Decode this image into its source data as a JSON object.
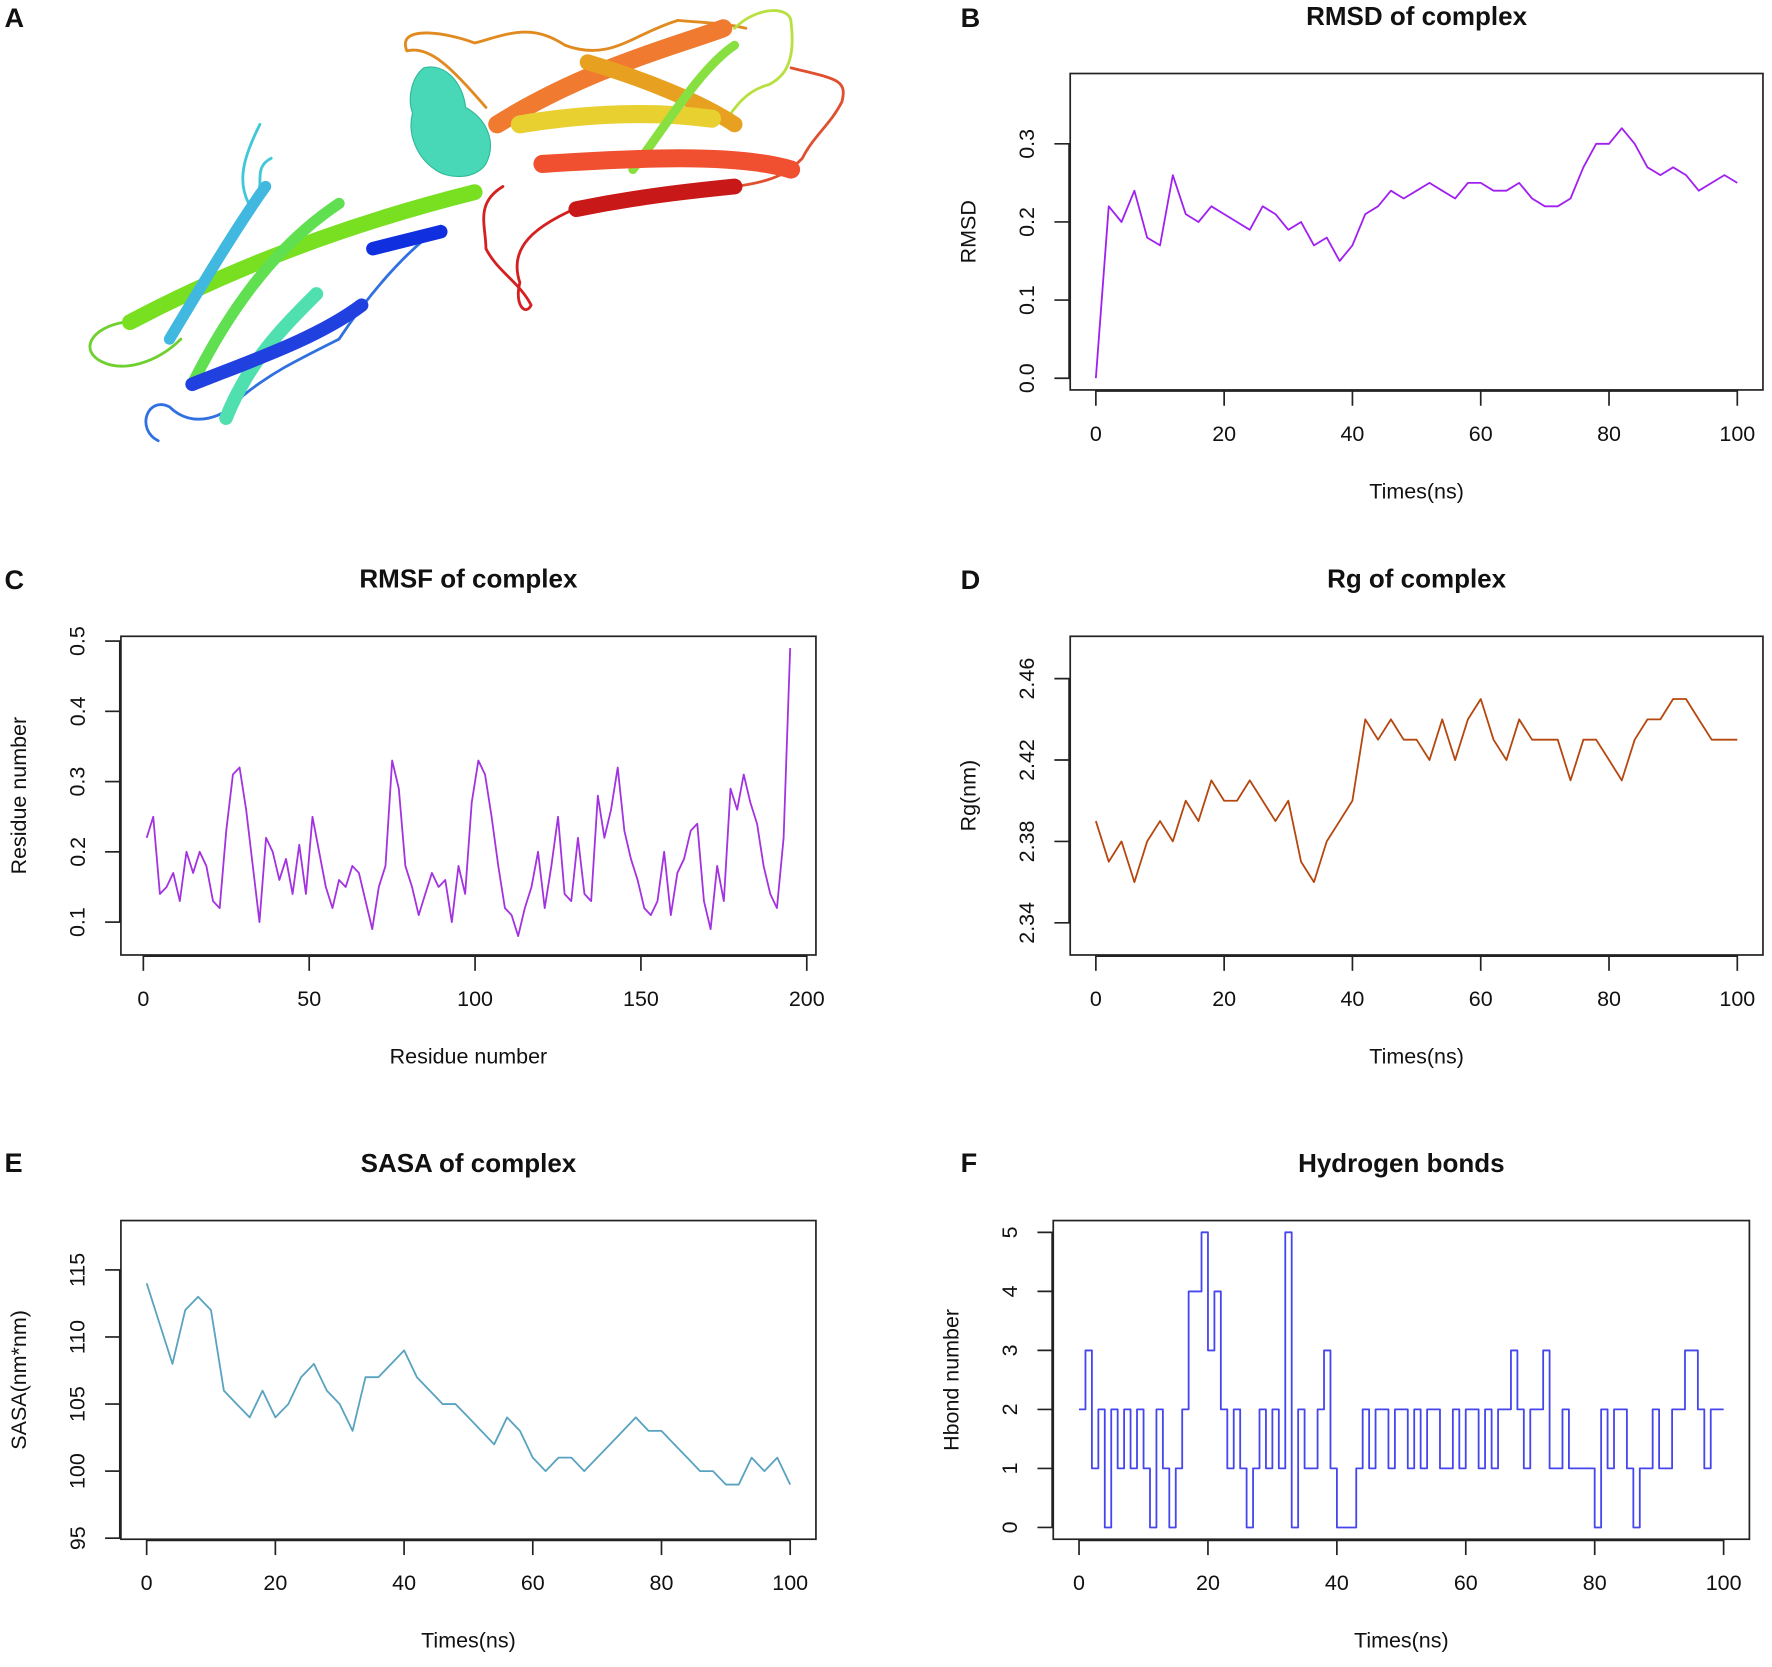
{
  "panel_labels": [
    "A",
    "B",
    "C",
    "D",
    "E",
    "F"
  ],
  "structure_panel": {
    "description_label": "A"
  },
  "chart_data": [
    {
      "panel": "B",
      "type": "line",
      "title": "RMSD of complex",
      "xlabel": "Times(ns)",
      "ylabel": "RMSD",
      "color": "#a020f0",
      "xlim": [
        0,
        100
      ],
      "ylim": [
        0,
        0.375
      ],
      "xticks": [
        0,
        20,
        40,
        60,
        80,
        100
      ],
      "xtick_labels": [
        "0",
        "20",
        "40",
        "60",
        "80",
        "100"
      ],
      "yticks": [
        0,
        0.1,
        0.2,
        0.3
      ],
      "ytick_labels": [
        "0.0",
        "0.1",
        "0.2",
        "0.3"
      ],
      "x_start": 0,
      "x_step": 2,
      "values": [
        0.0,
        0.22,
        0.2,
        0.24,
        0.18,
        0.17,
        0.26,
        0.21,
        0.2,
        0.22,
        0.21,
        0.2,
        0.19,
        0.22,
        0.21,
        0.19,
        0.2,
        0.17,
        0.18,
        0.15,
        0.17,
        0.21,
        0.22,
        0.24,
        0.23,
        0.24,
        0.25,
        0.24,
        0.23,
        0.25,
        0.25,
        0.24,
        0.24,
        0.25,
        0.23,
        0.22,
        0.22,
        0.23,
        0.27,
        0.3,
        0.3,
        0.32,
        0.3,
        0.27,
        0.26,
        0.27,
        0.26,
        0.24,
        0.25,
        0.26,
        0.25
      ],
      "step_line": false
    },
    {
      "panel": "C",
      "type": "line",
      "title": "RMSF of complex",
      "xlabel": "Residue number",
      "ylabel": "Residue number",
      "color": "#a333e0",
      "xlim": [
        1,
        195
      ],
      "ylim": [
        0.07,
        0.49
      ],
      "xticks": [
        0,
        50,
        100,
        150,
        200
      ],
      "xtick_labels": [
        "0",
        "50",
        "100",
        "150",
        "200"
      ],
      "yticks": [
        0.1,
        0.2,
        0.3,
        0.4,
        0.5
      ],
      "ytick_labels": [
        "0.1",
        "0.2",
        "0.3",
        "0.4",
        "0.5"
      ],
      "x_start": 1,
      "x_step": 2,
      "values": [
        0.22,
        0.25,
        0.14,
        0.15,
        0.17,
        0.13,
        0.2,
        0.17,
        0.2,
        0.18,
        0.13,
        0.12,
        0.23,
        0.31,
        0.32,
        0.26,
        0.18,
        0.1,
        0.22,
        0.2,
        0.16,
        0.19,
        0.14,
        0.21,
        0.14,
        0.25,
        0.2,
        0.15,
        0.12,
        0.16,
        0.15,
        0.18,
        0.17,
        0.13,
        0.09,
        0.15,
        0.18,
        0.33,
        0.29,
        0.18,
        0.15,
        0.11,
        0.14,
        0.17,
        0.15,
        0.16,
        0.1,
        0.18,
        0.14,
        0.27,
        0.33,
        0.31,
        0.25,
        0.18,
        0.12,
        0.11,
        0.08,
        0.12,
        0.15,
        0.2,
        0.12,
        0.18,
        0.25,
        0.14,
        0.13,
        0.22,
        0.14,
        0.13,
        0.28,
        0.22,
        0.26,
        0.32,
        0.23,
        0.19,
        0.16,
        0.12,
        0.11,
        0.13,
        0.2,
        0.11,
        0.17,
        0.19,
        0.23,
        0.24,
        0.13,
        0.09,
        0.18,
        0.13,
        0.29,
        0.26,
        0.31,
        0.27,
        0.24,
        0.18,
        0.14,
        0.12,
        0.22,
        0.49
      ],
      "step_line": false
    },
    {
      "panel": "D",
      "type": "line",
      "title": "Rg of complex",
      "xlabel": "Times(ns)",
      "ylabel": "Rg(nm)",
      "color": "#b5470f",
      "xlim": [
        0,
        100
      ],
      "ylim": [
        2.33,
        2.475
      ],
      "xticks": [
        0,
        20,
        40,
        60,
        80,
        100
      ],
      "xtick_labels": [
        "0",
        "20",
        "40",
        "60",
        "80",
        "100"
      ],
      "yticks": [
        2.34,
        2.38,
        2.42,
        2.46
      ],
      "ytick_labels": [
        "2.34",
        "2.38",
        "2.42",
        "2.46"
      ],
      "x_start": 0,
      "x_step": 2,
      "values": [
        2.39,
        2.37,
        2.38,
        2.36,
        2.38,
        2.39,
        2.38,
        2.4,
        2.39,
        2.41,
        2.4,
        2.4,
        2.41,
        2.4,
        2.39,
        2.4,
        2.37,
        2.36,
        2.38,
        2.39,
        2.4,
        2.44,
        2.43,
        2.44,
        2.43,
        2.43,
        2.42,
        2.44,
        2.42,
        2.44,
        2.45,
        2.43,
        2.42,
        2.44,
        2.43,
        2.43,
        2.43,
        2.41,
        2.43,
        2.43,
        2.42,
        2.41,
        2.43,
        2.44,
        2.44,
        2.45,
        2.45,
        2.44,
        2.43,
        2.43,
        2.43
      ],
      "step_line": false
    },
    {
      "panel": "E",
      "type": "line",
      "title": "SASA of complex",
      "xlabel": "Times(ns)",
      "ylabel": "SASA(nm*nm)",
      "color": "#5aa3c0",
      "xlim": [
        0,
        100
      ],
      "ylim": [
        95.8,
        117.8
      ],
      "xticks": [
        0,
        20,
        40,
        60,
        80,
        100
      ],
      "xtick_labels": [
        "0",
        "20",
        "40",
        "60",
        "80",
        "100"
      ],
      "yticks": [
        95,
        100,
        105,
        110,
        115
      ],
      "ytick_labels": [
        "95",
        "100",
        "105",
        "110",
        "115"
      ],
      "x_start": 0,
      "x_step": 2,
      "values": [
        114,
        111,
        108,
        112,
        113,
        112,
        106,
        105,
        104,
        106,
        104,
        105,
        107,
        108,
        106,
        105,
        103,
        107,
        107,
        108,
        109,
        107,
        106,
        105,
        105,
        104,
        103,
        102,
        104,
        103,
        101,
        100,
        101,
        101,
        100,
        101,
        102,
        103,
        104,
        103,
        103,
        102,
        101,
        100,
        100,
        99,
        99,
        101,
        100,
        101,
        99
      ],
      "step_line": false
    },
    {
      "panel": "F",
      "type": "line",
      "title": "Hydrogen bonds",
      "xlabel": "Times(ns)",
      "ylabel": "Hbond number",
      "color": "#4646ee",
      "xlim": [
        0,
        100
      ],
      "ylim": [
        0,
        5
      ],
      "xticks": [
        0,
        20,
        40,
        60,
        80,
        100
      ],
      "xtick_labels": [
        "0",
        "20",
        "40",
        "60",
        "80",
        "100"
      ],
      "yticks": [
        0,
        1,
        2,
        3,
        4,
        5
      ],
      "ytick_labels": [
        "0",
        "1",
        "2",
        "3",
        "4",
        "5"
      ],
      "x_start": 0,
      "x_step": 1,
      "values": [
        2,
        3,
        1,
        2,
        0,
        2,
        1,
        2,
        1,
        2,
        1,
        0,
        2,
        1,
        0,
        1,
        2,
        4,
        4,
        5,
        3,
        4,
        2,
        1,
        2,
        1,
        0,
        1,
        2,
        1,
        2,
        1,
        5,
        0,
        2,
        1,
        1,
        2,
        3,
        1,
        0,
        0,
        0,
        1,
        2,
        1,
        2,
        2,
        1,
        2,
        2,
        1,
        2,
        1,
        2,
        2,
        1,
        1,
        2,
        1,
        2,
        2,
        1,
        2,
        1,
        2,
        2,
        3,
        2,
        1,
        2,
        2,
        3,
        1,
        1,
        2,
        1,
        1,
        1,
        1,
        0,
        2,
        1,
        2,
        2,
        1,
        0,
        1,
        1,
        2,
        1,
        1,
        2,
        2,
        3,
        3,
        2,
        1,
        2,
        2,
        2
      ],
      "step_line": true
    }
  ]
}
